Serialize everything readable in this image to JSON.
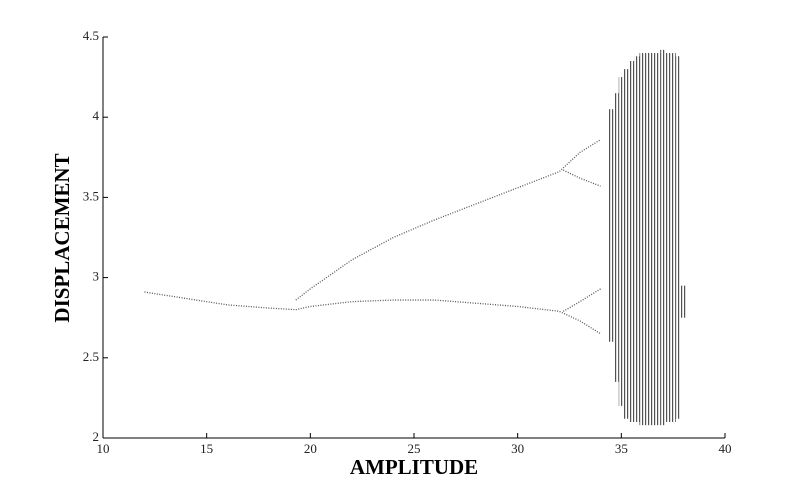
{
  "chart_data": {
    "type": "line",
    "x_label": "AMPLITUDE",
    "y_label": "DISPLACEMENT",
    "xlim": [
      10,
      40
    ],
    "xticks": [
      10,
      15,
      20,
      25,
      30,
      35,
      40
    ],
    "ylim": [
      2,
      4.5
    ],
    "yticks": [
      2,
      2.5,
      3,
      3.5,
      4,
      4.5
    ],
    "color": "#555555",
    "series": [
      {
        "x": [
          12,
          14,
          16,
          18,
          19.3,
          20,
          22,
          24,
          26,
          28,
          30,
          32,
          33,
          34
        ],
        "values": [
          2.91,
          2.87,
          2.83,
          2.81,
          2.8,
          2.82,
          2.85,
          2.86,
          2.86,
          2.84,
          2.82,
          2.79,
          2.73,
          2.65
        ]
      },
      {
        "x": [
          19.3,
          20,
          22,
          24,
          26,
          28,
          30,
          32,
          33,
          34
        ],
        "values": [
          2.86,
          2.93,
          3.11,
          3.25,
          3.36,
          3.46,
          3.56,
          3.66,
          3.78,
          3.86
        ]
      },
      {
        "x": [
          32.2,
          33,
          34
        ],
        "values": [
          3.67,
          3.62,
          3.57
        ]
      },
      {
        "x": [
          32.2,
          33,
          34
        ],
        "values": [
          2.79,
          2.85,
          2.93
        ]
      }
    ],
    "bands": {
      "x": [
        34.5,
        34.75,
        35,
        35.25,
        35.5,
        35.75,
        36,
        36.25,
        36.5,
        36.75,
        37,
        37.25,
        37.5,
        37.75,
        38
      ],
      "low": [
        2.6,
        2.35,
        2.2,
        2.12,
        2.1,
        2.1,
        2.08,
        2.08,
        2.08,
        2.08,
        2.08,
        2.1,
        2.1,
        2.12,
        2.75
      ],
      "high": [
        4.05,
        4.15,
        4.25,
        4.3,
        4.35,
        4.38,
        4.4,
        4.4,
        4.4,
        4.4,
        4.42,
        4.4,
        4.4,
        4.38,
        2.95
      ]
    }
  }
}
